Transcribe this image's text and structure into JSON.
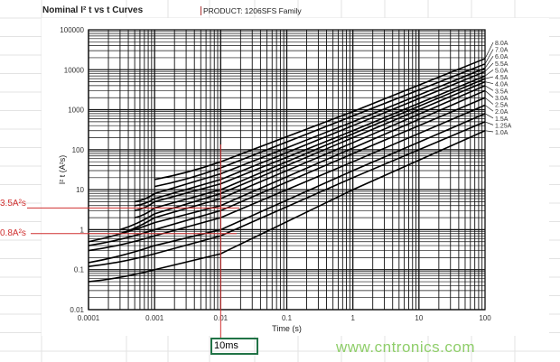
{
  "chart_data": {
    "type": "line",
    "title": "Nominal I² t vs t Curves",
    "subtitle": "PRODUCT:  1206SFS Family",
    "xlabel": "Time (s)",
    "ylabel": "I² t (A²s)",
    "xscale": "log",
    "yscale": "log",
    "xlim": [
      0.0001,
      100
    ],
    "ylim": [
      0.01,
      100000
    ],
    "xticks": [
      "0.0001",
      "0.001",
      "0.01",
      "0.1",
      "1",
      "10",
      "100"
    ],
    "yticks": [
      "0.01",
      "0.1",
      "1",
      "10",
      "100",
      "1000",
      "10000",
      "100000"
    ],
    "grid": true,
    "legend": "right",
    "series": [
      {
        "name": "1.0A",
        "points": [
          [
            0.0001,
            0.05
          ],
          [
            0.001,
            0.1
          ],
          [
            0.01,
            0.25
          ],
          [
            1,
            10
          ],
          [
            100,
            300
          ]
        ]
      },
      {
        "name": "1.25A",
        "points": [
          [
            0.0001,
            0.12
          ],
          [
            0.001,
            0.25
          ],
          [
            0.01,
            0.7
          ],
          [
            1,
            20
          ],
          [
            100,
            500
          ]
        ]
      },
      {
        "name": "1.5A",
        "points": [
          [
            0.0001,
            0.15
          ],
          [
            0.001,
            0.4
          ],
          [
            0.01,
            1
          ],
          [
            1,
            30
          ],
          [
            100,
            800
          ]
        ]
      },
      {
        "name": "2.0A",
        "points": [
          [
            0.0001,
            0.3
          ],
          [
            0.001,
            0.7
          ],
          [
            0.01,
            2
          ],
          [
            1,
            50
          ],
          [
            100,
            1300
          ]
        ]
      },
      {
        "name": "2.5A",
        "points": [
          [
            0.0001,
            0.4
          ],
          [
            0.001,
            1
          ],
          [
            0.01,
            3
          ],
          [
            1,
            80
          ],
          [
            100,
            2000
          ]
        ]
      },
      {
        "name": "3.0A",
        "points": [
          [
            0.0001,
            0.5
          ],
          [
            0.001,
            1.5
          ],
          [
            0.01,
            4
          ],
          [
            1,
            110
          ],
          [
            100,
            3000
          ]
        ]
      },
      {
        "name": "3.5A",
        "points": [
          [
            0.0003,
            0.8
          ],
          [
            0.001,
            2
          ],
          [
            0.01,
            6
          ],
          [
            1,
            150
          ],
          [
            100,
            4000
          ]
        ]
      },
      {
        "name": "4.0A",
        "points": [
          [
            0.0003,
            1
          ],
          [
            0.001,
            2.5
          ],
          [
            0.01,
            8
          ],
          [
            1,
            200
          ],
          [
            100,
            5000
          ]
        ]
      },
      {
        "name": "4.5A",
        "points": [
          [
            0.0005,
            2
          ],
          [
            0.001,
            3.5
          ],
          [
            0.01,
            10
          ],
          [
            1,
            250
          ],
          [
            100,
            6000
          ]
        ]
      },
      {
        "name": "5.0A",
        "points": [
          [
            0.0005,
            3
          ],
          [
            0.001,
            5
          ],
          [
            0.01,
            14
          ],
          [
            1,
            300
          ],
          [
            100,
            7000
          ]
        ]
      },
      {
        "name": "5.5A",
        "points": [
          [
            0.0005,
            4
          ],
          [
            0.001,
            6
          ],
          [
            0.01,
            18
          ],
          [
            1,
            400
          ],
          [
            100,
            9000
          ]
        ]
      },
      {
        "name": "6.0A",
        "points": [
          [
            0.0005,
            5
          ],
          [
            0.001,
            8
          ],
          [
            0.01,
            25
          ],
          [
            1,
            500
          ],
          [
            100,
            11000
          ]
        ]
      },
      {
        "name": "7.0A",
        "points": [
          [
            0.001,
            12
          ],
          [
            0.01,
            35
          ],
          [
            1,
            700
          ],
          [
            100,
            14000
          ]
        ]
      },
      {
        "name": "8.0A",
        "points": [
          [
            0.001,
            18
          ],
          [
            0.01,
            50
          ],
          [
            1,
            900
          ],
          [
            100,
            19000
          ]
        ]
      }
    ],
    "annotations": [
      {
        "label": "3.5A²s",
        "y": 3.5
      },
      {
        "label": "0.8A²s",
        "y": 0.8
      },
      {
        "x": 0.01
      }
    ],
    "annotation_color": "#d03030"
  },
  "sheet": {
    "selected_cell": "10ms",
    "selection_color": "#217346"
  },
  "watermark": "www.cntronics.com"
}
